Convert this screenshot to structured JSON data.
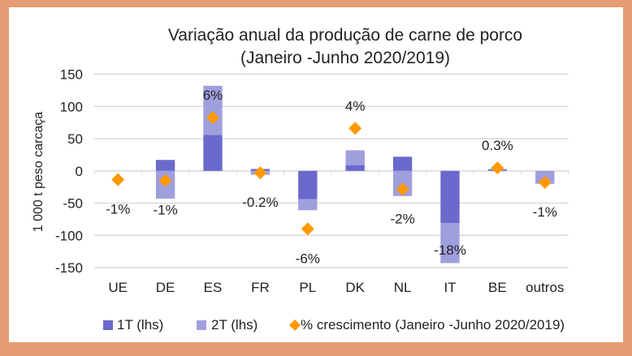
{
  "chart_data": {
    "type": "bar",
    "title": "Variação anual da produção de carne de porco",
    "subtitle": "(Janeiro -Junho 2020/2019)",
    "ylabel": "1 000 t peso carcaça",
    "xlabel": "",
    "ylim": [
      -150,
      150
    ],
    "yticks": [
      150,
      100,
      50,
      0,
      -50,
      -100,
      -150
    ],
    "secondary_ylim": [
      -10,
      10
    ],
    "grid": true,
    "stacked": true,
    "legend_position": "bottom",
    "categories": [
      "UE",
      "DE",
      "ES",
      "FR",
      "PL",
      "DK",
      "NL",
      "IT",
      "BE",
      "outros"
    ],
    "series": [
      {
        "name": "1T (lhs)",
        "type": "bar",
        "color": "#6A6ACC",
        "values": [
          0,
          17,
          56,
          3,
          -44,
          9,
          22,
          -81,
          2,
          0
        ]
      },
      {
        "name": "2T (lhs)",
        "type": "bar",
        "color": "#A09FDD",
        "values": [
          0,
          -43,
          76,
          -6,
          -17,
          23,
          -39,
          -62,
          1,
          -20
        ]
      },
      {
        "name": "% crescimento (Janeiro -Junho 2020/2019)",
        "type": "scatter",
        "axis": "secondary",
        "color": "#FF9900",
        "values": [
          -0.9,
          -1.0,
          5.5,
          -0.2,
          -6.0,
          4.4,
          -1.9,
          -18,
          0.3,
          -1.2
        ],
        "labels": [
          "-1%",
          "-1%",
          "6%",
          "-0.2%",
          "-6%",
          "4%",
          "-2%",
          "-18%",
          "0.3%",
          "-1%"
        ]
      }
    ]
  }
}
